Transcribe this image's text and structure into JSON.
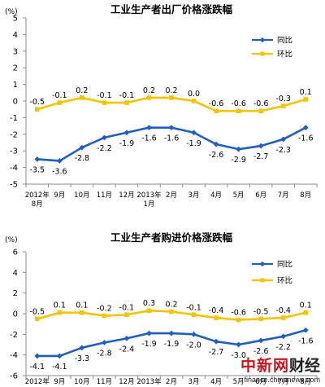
{
  "chart_data": [
    {
      "type": "line",
      "title": "工业生产者出厂价格涨跌幅",
      "unit": "(%)",
      "ylim": [
        -5,
        5
      ],
      "yticks": [
        5,
        4,
        3,
        2,
        1,
        0,
        -1,
        -2,
        -3,
        -4,
        -5
      ],
      "grid": false,
      "legend": "right",
      "categories": [
        {
          "line1": "2012年",
          "line2": "8月"
        },
        {
          "line1": "9月",
          "line2": ""
        },
        {
          "line1": "10月",
          "line2": ""
        },
        {
          "line1": "11月",
          "line2": ""
        },
        {
          "line1": "12月",
          "line2": ""
        },
        {
          "line1": "2013年",
          "line2": "1月"
        },
        {
          "line1": "2月",
          "line2": ""
        },
        {
          "line1": "3月",
          "line2": ""
        },
        {
          "line1": "4月",
          "line2": ""
        },
        {
          "line1": "5月",
          "line2": ""
        },
        {
          "line1": "6月",
          "line2": ""
        },
        {
          "line1": "7月",
          "line2": ""
        },
        {
          "line1": "8月",
          "line2": ""
        }
      ],
      "series": [
        {
          "name": "同比",
          "color": "#1f5fbf",
          "marker": "diamond",
          "values": [
            -3.5,
            -3.6,
            -2.8,
            -2.2,
            -1.9,
            -1.6,
            -1.6,
            -1.9,
            -2.6,
            -2.9,
            -2.7,
            -2.3,
            -1.6
          ]
        },
        {
          "name": "环比",
          "color": "#f2c500",
          "marker": "square",
          "values": [
            -0.5,
            -0.1,
            0.2,
            -0.1,
            -0.1,
            0.2,
            0.2,
            0.0,
            -0.6,
            -0.6,
            -0.6,
            -0.3,
            0.1
          ]
        }
      ]
    },
    {
      "type": "line",
      "title": "工业生产者购进价格涨跌幅",
      "unit": "(%)",
      "ylim": [
        -6,
        6
      ],
      "yticks": [
        6,
        4,
        2,
        0,
        -2,
        -4,
        -6
      ],
      "grid": false,
      "legend": "right",
      "categories": [
        {
          "line1": "2012年",
          "line2": ""
        },
        {
          "line1": "9月",
          "line2": ""
        },
        {
          "line1": "10月",
          "line2": ""
        },
        {
          "line1": "11月",
          "line2": ""
        },
        {
          "line1": "12月",
          "line2": ""
        },
        {
          "line1": "2013年",
          "line2": ""
        },
        {
          "line1": "2月",
          "line2": ""
        },
        {
          "line1": "3月",
          "line2": ""
        },
        {
          "line1": "4月",
          "line2": ""
        },
        {
          "line1": "5月",
          "line2": ""
        },
        {
          "line1": "6月",
          "line2": ""
        },
        {
          "line1": "7月",
          "line2": ""
        },
        {
          "line1": "8月",
          "line2": ""
        }
      ],
      "series": [
        {
          "name": "同比",
          "color": "#1f5fbf",
          "marker": "diamond",
          "values": [
            -4.1,
            -4.1,
            -3.3,
            -2.8,
            -2.4,
            -1.9,
            -1.9,
            -2.0,
            -2.7,
            -3.0,
            -2.6,
            -2.2,
            -1.6
          ]
        },
        {
          "name": "环比",
          "color": "#f2c500",
          "marker": "square",
          "values": [
            -0.5,
            0.1,
            0.1,
            -0.2,
            -0.1,
            0.3,
            0.2,
            -0.1,
            -0.4,
            -0.6,
            -0.5,
            -0.4,
            0.1
          ]
        }
      ]
    }
  ],
  "watermark": {
    "brand": "中新网",
    "section": "财经",
    "url": "finance.chinanews.com"
  }
}
